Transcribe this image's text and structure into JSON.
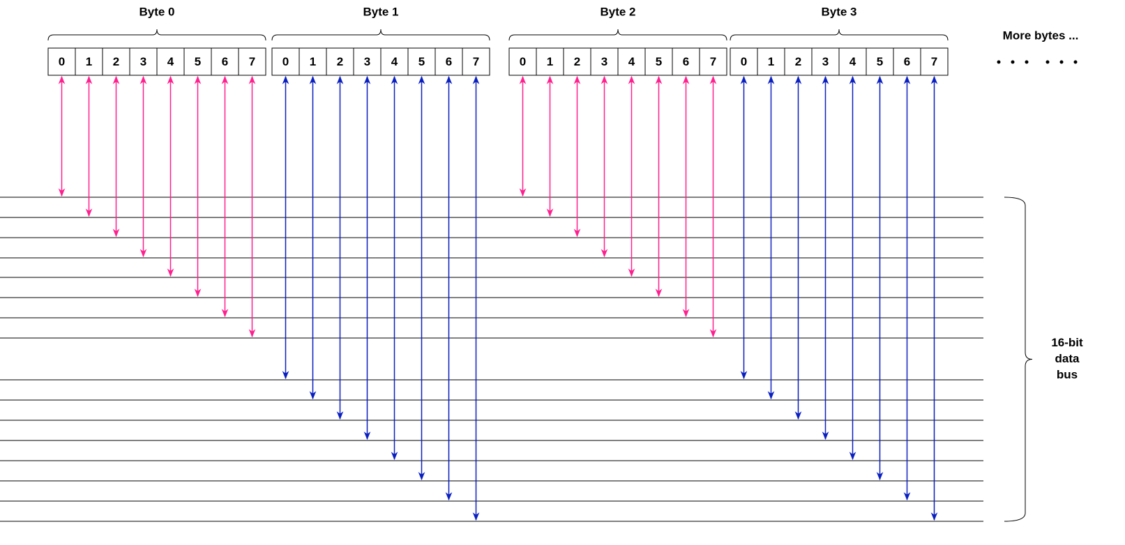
{
  "bytes": [
    {
      "label": "Byte 0",
      "bits": [
        "0",
        "1",
        "2",
        "3",
        "4",
        "5",
        "6",
        "7"
      ]
    },
    {
      "label": "Byte 1",
      "bits": [
        "0",
        "1",
        "2",
        "3",
        "4",
        "5",
        "6",
        "7"
      ]
    },
    {
      "label": "Byte 2",
      "bits": [
        "0",
        "1",
        "2",
        "3",
        "4",
        "5",
        "6",
        "7"
      ]
    },
    {
      "label": "Byte 3",
      "bits": [
        "0",
        "1",
        "2",
        "3",
        "4",
        "5",
        "6",
        "7"
      ]
    }
  ],
  "more_bytes": "More bytes ...",
  "bus_label": [
    "16-bit",
    "data",
    "bus"
  ]
}
